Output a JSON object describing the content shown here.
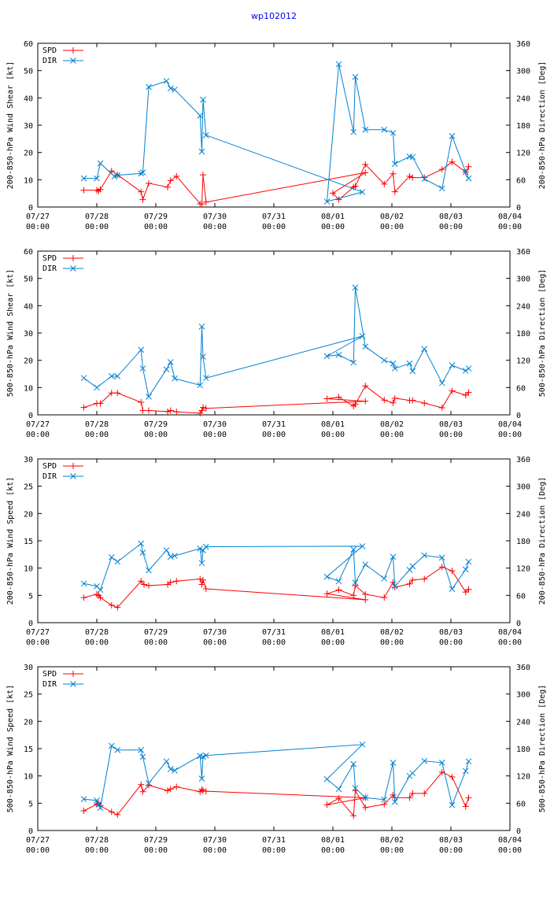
{
  "page_title": "wp102012",
  "colors": {
    "spd": "#ff0000",
    "dir": "#0080d0",
    "title": "#0000ff",
    "axes": "#000000"
  },
  "legend": {
    "spd": "SPD",
    "dir": "DIR"
  },
  "chart_data": [
    {
      "type": "line",
      "ylabel": "200-850-hPa Wind Shear [kt]",
      "y2label": "200-850-hPa Direction [Deg]",
      "ylim": [
        0,
        60
      ],
      "yticks": [
        0,
        10,
        20,
        30,
        40,
        50,
        60
      ],
      "y2lim": [
        0,
        360
      ],
      "y2ticks": [
        0,
        60,
        120,
        180,
        240,
        300,
        360
      ],
      "xlim": [
        0,
        8
      ],
      "xticks": [
        {
          "v": 0,
          "l1": "07/27",
          "l2": "00:00"
        },
        {
          "v": 1,
          "l1": "07/28",
          "l2": "00:00"
        },
        {
          "v": 2,
          "l1": "07/29",
          "l2": "00:00"
        },
        {
          "v": 3,
          "l1": "07/30",
          "l2": "00:00"
        },
        {
          "v": 4,
          "l1": "07/31",
          "l2": "00:00"
        },
        {
          "v": 5,
          "l1": "08/01",
          "l2": "00:00"
        },
        {
          "v": 6,
          "l1": "08/02",
          "l2": "00:00"
        },
        {
          "v": 7,
          "l1": "08/03",
          "l2": "00:00"
        },
        {
          "v": 8,
          "l1": "08/04",
          "l2": "00:00"
        }
      ],
      "series": [
        {
          "name": "SPD",
          "axis": "y",
          "x": [
            0.78,
            1.0,
            1.03,
            1.06,
            1.25,
            1.35,
            1.75,
            1.78,
            1.88,
            2.2,
            2.25,
            2.35,
            2.75,
            2.78,
            2.8,
            2.85,
            5.55,
            5.0,
            5.1,
            5.35,
            5.38,
            5.55,
            5.87,
            6.02,
            6.05,
            6.3,
            6.35,
            6.55,
            6.85,
            7.02,
            7.25,
            7.3
          ],
          "y": [
            6.2,
            6.2,
            5.8,
            6.5,
            13.2,
            11.8,
            5.6,
            2.7,
            8.7,
            7.3,
            9.7,
            11.3,
            1.2,
            1.1,
            11.8,
            1.8,
            12.6,
            5.1,
            2.7,
            7.3,
            7.6,
            15.6,
            8.4,
            12.2,
            5.6,
            11.3,
            10.8,
            10.8,
            13.8,
            16.5,
            12.8,
            14.8
          ]
        },
        {
          "name": "DIR",
          "axis": "y2",
          "x": [
            0.78,
            1.0,
            1.06,
            1.3,
            1.35,
            1.75,
            1.78,
            1.88,
            2.18,
            2.25,
            2.32,
            2.75,
            2.78,
            2.8,
            2.85,
            5.5,
            4.9,
            5.1,
            5.35,
            5.38,
            5.55,
            5.87,
            6.02,
            6.05,
            6.3,
            6.35,
            6.55,
            6.85,
            7.02,
            7.25,
            7.3
          ],
          "y": [
            63,
            63,
            96,
            67,
            70,
            74,
            76,
            264,
            277,
            261,
            258,
            201,
            122,
            236,
            158,
            33,
            12,
            314,
            165,
            286,
            170,
            170,
            163,
            95,
            111,
            110,
            62,
            41,
            156,
            77,
            63
          ]
        }
      ]
    },
    {
      "type": "line",
      "ylabel": "500-850-hPa Wind Shear [kt]",
      "y2label": "500-850-hPa Direction [Deg]",
      "ylim": [
        0,
        60
      ],
      "yticks": [
        0,
        10,
        20,
        30,
        40,
        50,
        60
      ],
      "y2lim": [
        0,
        360
      ],
      "y2ticks": [
        0,
        60,
        120,
        180,
        240,
        300,
        360
      ],
      "xlim": [
        0,
        8
      ],
      "xticks": [
        {
          "v": 0,
          "l1": "07/27",
          "l2": "00:00"
        },
        {
          "v": 1,
          "l1": "07/28",
          "l2": "00:00"
        },
        {
          "v": 2,
          "l1": "07/29",
          "l2": "00:00"
        },
        {
          "v": 3,
          "l1": "07/30",
          "l2": "00:00"
        },
        {
          "v": 4,
          "l1": "07/31",
          "l2": "00:00"
        },
        {
          "v": 5,
          "l1": "08/01",
          "l2": "00:00"
        },
        {
          "v": 6,
          "l1": "08/02",
          "l2": "00:00"
        },
        {
          "v": 7,
          "l1": "08/03",
          "l2": "00:00"
        },
        {
          "v": 8,
          "l1": "08/04",
          "l2": "00:00"
        }
      ],
      "series": [
        {
          "name": "SPD",
          "axis": "y",
          "x": [
            0.78,
            1.0,
            1.06,
            1.25,
            1.35,
            1.75,
            1.78,
            1.88,
            2.2,
            2.25,
            2.35,
            2.75,
            2.78,
            2.8,
            2.85,
            5.55,
            4.9,
            5.1,
            5.35,
            5.38,
            5.55,
            5.87,
            6.02,
            6.05,
            6.3,
            6.35,
            6.55,
            6.85,
            7.02,
            7.25,
            7.3
          ],
          "y": [
            2.7,
            4.2,
            4.2,
            8.0,
            8.0,
            4.6,
            1.6,
            1.6,
            1.2,
            1.6,
            1.1,
            0.6,
            1.6,
            2.7,
            2.4,
            5.0,
            5.9,
            6.5,
            3.2,
            3.9,
            10.6,
            5.4,
            4.4,
            6.1,
            5.3,
            5.3,
            4.3,
            2.6,
            8.8,
            7.2,
            8.2
          ]
        },
        {
          "name": "DIR",
          "axis": "y2",
          "x": [
            0.78,
            1.0,
            1.25,
            1.35,
            1.75,
            1.78,
            1.88,
            2.18,
            2.25,
            2.32,
            2.75,
            2.78,
            2.8,
            2.85,
            5.5,
            4.9,
            5.1,
            5.35,
            5.38,
            5.55,
            5.87,
            6.02,
            6.05,
            6.3,
            6.35,
            6.55,
            6.85,
            7.02,
            7.25,
            7.3
          ],
          "y": [
            81,
            60,
            85,
            85,
            143,
            102,
            40,
            100,
            116,
            80,
            65,
            194,
            128,
            81,
            173,
            129,
            132,
            115,
            280,
            150,
            120,
            113,
            102,
            113,
            96,
            145,
            70,
            109,
            97,
            102
          ]
        }
      ]
    },
    {
      "type": "line",
      "ylabel": "200-850-hPa Wind Speed [kt]",
      "y2label": "200-850-hPa Direction [Deg]",
      "ylim": [
        0,
        30
      ],
      "yticks": [
        0,
        5,
        10,
        15,
        20,
        25,
        30
      ],
      "y2lim": [
        0,
        360
      ],
      "y2ticks": [
        0,
        60,
        120,
        180,
        240,
        300,
        360
      ],
      "xlim": [
        0,
        8
      ],
      "xticks": [
        {
          "v": 0,
          "l1": "07/27",
          "l2": "00:00"
        },
        {
          "v": 1,
          "l1": "07/28",
          "l2": "00:00"
        },
        {
          "v": 2,
          "l1": "07/29",
          "l2": "00:00"
        },
        {
          "v": 3,
          "l1": "07/30",
          "l2": "00:00"
        },
        {
          "v": 4,
          "l1": "07/31",
          "l2": "00:00"
        },
        {
          "v": 5,
          "l1": "08/01",
          "l2": "00:00"
        },
        {
          "v": 6,
          "l1": "08/02",
          "l2": "00:00"
        },
        {
          "v": 7,
          "l1": "08/03",
          "l2": "00:00"
        },
        {
          "v": 8,
          "l1": "08/04",
          "l2": "00:00"
        }
      ],
      "series": [
        {
          "name": "SPD",
          "axis": "y",
          "x": [
            0.78,
            1.0,
            1.03,
            1.06,
            1.25,
            1.35,
            1.75,
            1.8,
            1.88,
            2.2,
            2.25,
            2.35,
            2.75,
            2.78,
            2.8,
            2.85,
            5.55,
            4.9,
            5.1,
            5.35,
            5.38,
            5.55,
            5.87,
            6.02,
            6.05,
            6.3,
            6.35,
            6.55,
            6.85,
            7.02,
            7.25,
            7.3
          ],
          "y": [
            4.6,
            5.2,
            5.0,
            4.6,
            3.2,
            2.8,
            7.6,
            7.0,
            6.8,
            7.0,
            7.4,
            7.6,
            8.0,
            7.0,
            7.8,
            6.2,
            4.2,
            5.3,
            6.0,
            5.0,
            6.8,
            5.2,
            4.6,
            7.4,
            6.5,
            7.1,
            7.8,
            8.0,
            10.2,
            9.5,
            5.6,
            6.1
          ]
        },
        {
          "name": "DIR",
          "axis": "y2",
          "x": [
            0.78,
            1.0,
            1.06,
            1.25,
            1.35,
            1.75,
            1.78,
            1.88,
            2.18,
            2.25,
            2.32,
            2.75,
            2.78,
            2.8,
            2.85,
            5.5,
            4.9,
            5.1,
            5.35,
            5.38,
            5.55,
            5.87,
            6.02,
            6.05,
            6.3,
            6.35,
            6.55,
            6.85,
            7.02,
            7.25,
            7.3
          ],
          "y": [
            86,
            80,
            72,
            144,
            134,
            174,
            154,
            115,
            159,
            145,
            147,
            163,
            131,
            159,
            167,
            168,
            101,
            91,
            161,
            88,
            128,
            97,
            145,
            80,
            116,
            124,
            148,
            143,
            74,
            117,
            134
          ]
        }
      ]
    },
    {
      "type": "line",
      "ylabel": "500-850-hPa Wind Speed [kt]",
      "y2label": "500-850-hPa Direction [Deg]",
      "ylim": [
        0,
        30
      ],
      "yticks": [
        0,
        5,
        10,
        15,
        20,
        25,
        30
      ],
      "y2lim": [
        0,
        360
      ],
      "y2ticks": [
        0,
        60,
        120,
        180,
        240,
        300,
        360
      ],
      "xlim": [
        0,
        8
      ],
      "xticks": [
        {
          "v": 0,
          "l1": "07/27",
          "l2": "00:00"
        },
        {
          "v": 1,
          "l1": "07/28",
          "l2": "00:00"
        },
        {
          "v": 2,
          "l1": "07/29",
          "l2": "00:00"
        },
        {
          "v": 3,
          "l1": "07/30",
          "l2": "00:00"
        },
        {
          "v": 4,
          "l1": "07/31",
          "l2": "00:00"
        },
        {
          "v": 5,
          "l1": "08/01",
          "l2": "00:00"
        },
        {
          "v": 6,
          "l1": "08/02",
          "l2": "00:00"
        },
        {
          "v": 7,
          "l1": "08/03",
          "l2": "00:00"
        },
        {
          "v": 8,
          "l1": "08/04",
          "l2": "00:00"
        }
      ],
      "series": [
        {
          "name": "SPD",
          "axis": "y",
          "x": [
            0.78,
            1.0,
            1.03,
            1.06,
            1.25,
            1.35,
            1.75,
            1.78,
            1.88,
            2.2,
            2.25,
            2.35,
            2.75,
            2.78,
            2.8,
            2.85,
            5.55,
            4.9,
            5.1,
            5.35,
            5.38,
            5.55,
            5.87,
            6.02,
            6.05,
            6.3,
            6.35,
            6.55,
            6.85,
            7.02,
            7.25,
            7.3
          ],
          "y": [
            3.6,
            4.8,
            5.0,
            4.5,
            3.4,
            2.9,
            8.4,
            7.1,
            8.3,
            7.3,
            7.6,
            8.0,
            7.1,
            7.5,
            7.3,
            7.2,
            6.0,
            4.7,
            5.9,
            2.7,
            7.3,
            4.2,
            4.8,
            6.5,
            6.0,
            6.0,
            6.8,
            6.8,
            10.7,
            9.8,
            4.4,
            6.0
          ]
        },
        {
          "name": "DIR",
          "axis": "y2",
          "x": [
            0.78,
            1.0,
            1.03,
            1.06,
            1.25,
            1.35,
            1.75,
            1.78,
            1.88,
            2.18,
            2.25,
            2.32,
            2.75,
            2.78,
            2.8,
            2.85,
            5.5,
            4.9,
            5.1,
            5.35,
            5.38,
            5.55,
            5.87,
            6.02,
            6.05,
            6.3,
            6.35,
            6.55,
            6.85,
            7.02,
            7.25,
            7.3
          ],
          "y": [
            69,
            66,
            58,
            50,
            186,
            177,
            177,
            162,
            104,
            152,
            135,
            132,
            164,
            114,
            162,
            165,
            189,
            113,
            91,
            146,
            93,
            72,
            68,
            149,
            63,
            120,
            126,
            153,
            149,
            56,
            131,
            152
          ]
        }
      ]
    }
  ]
}
